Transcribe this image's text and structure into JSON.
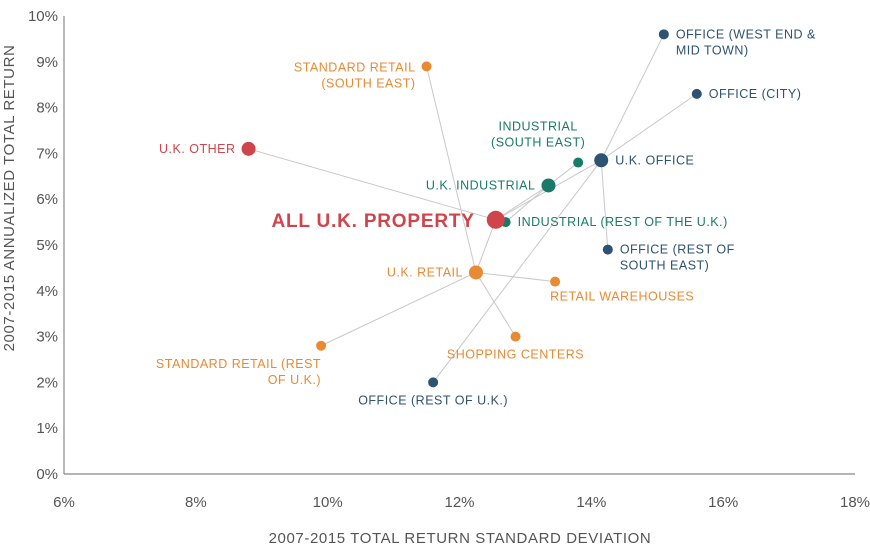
{
  "colors": {
    "office": "#2e5272",
    "industrial": "#1a7a6a",
    "retail": "#e88a32",
    "other": "#d0444c",
    "connector": "#c8c8c8",
    "axis": "#888888"
  },
  "chart_data": {
    "type": "scatter",
    "xlabel": "2007-2015 TOTAL RETURN STANDARD DEVIATION",
    "ylabel": "2007-2015 ANNUALIZED TOTAL RETURN",
    "xlim": [
      6,
      18
    ],
    "ylim": [
      0,
      10
    ],
    "x_unit": "%",
    "y_unit": "%",
    "xticks": [
      6,
      8,
      10,
      12,
      14,
      16,
      18
    ],
    "yticks": [
      0,
      1,
      2,
      3,
      4,
      5,
      6,
      7,
      8,
      9,
      10
    ],
    "xtick_labels": [
      "6%",
      "8%",
      "10%",
      "12%",
      "14%",
      "16%",
      "18%"
    ],
    "ytick_labels": [
      "0%",
      "1%",
      "2%",
      "3%",
      "4%",
      "5%",
      "6%",
      "7%",
      "8%",
      "9%",
      "10%"
    ],
    "grid": false,
    "points": [
      {
        "id": "all-uk-property",
        "label_lines": [
          "ALL U.K. PROPERTY"
        ],
        "x": 12.55,
        "y": 5.55,
        "group": "other",
        "size": "xl",
        "label_pos": "left-big"
      },
      {
        "id": "uk-other",
        "label_lines": [
          "U.K. OTHER"
        ],
        "x": 8.8,
        "y": 7.1,
        "group": "other",
        "size": "lg",
        "label_pos": "left"
      },
      {
        "id": "uk-office",
        "label_lines": [
          "U.K. OFFICE"
        ],
        "x": 14.15,
        "y": 6.85,
        "group": "office",
        "size": "lg",
        "label_pos": "right"
      },
      {
        "id": "office-west-end",
        "label_lines": [
          "OFFICE (WEST END &",
          "MID TOWN)"
        ],
        "x": 15.1,
        "y": 9.6,
        "group": "office",
        "size": "sm",
        "label_pos": "right-top"
      },
      {
        "id": "office-city",
        "label_lines": [
          "OFFICE (CITY)"
        ],
        "x": 15.6,
        "y": 8.3,
        "group": "office",
        "size": "sm",
        "label_pos": "right"
      },
      {
        "id": "office-rest-south-east",
        "label_lines": [
          "OFFICE (REST OF",
          "SOUTH EAST)"
        ],
        "x": 14.25,
        "y": 4.9,
        "group": "office",
        "size": "sm",
        "label_pos": "right-top"
      },
      {
        "id": "office-rest-uk",
        "label_lines": [
          "OFFICE (REST OF U.K.)"
        ],
        "x": 11.6,
        "y": 2.0,
        "group": "office",
        "size": "sm",
        "label_pos": "below"
      },
      {
        "id": "uk-industrial",
        "label_lines": [
          "U.K. INDUSTRIAL"
        ],
        "x": 13.35,
        "y": 6.3,
        "group": "industrial",
        "size": "lg",
        "label_pos": "left"
      },
      {
        "id": "industrial-south-east",
        "label_lines": [
          "INDUSTRIAL",
          "(SOUTH EAST)"
        ],
        "x": 13.8,
        "y": 6.8,
        "group": "industrial",
        "size": "sm",
        "label_pos": "above"
      },
      {
        "id": "industrial-rest-uk",
        "label_lines": [
          "INDUSTRIAL (REST OF THE U.K.)"
        ],
        "x": 12.7,
        "y": 5.5,
        "group": "industrial",
        "size": "sm",
        "label_pos": "right"
      },
      {
        "id": "uk-retail",
        "label_lines": [
          "U.K. RETAIL"
        ],
        "x": 12.25,
        "y": 4.4,
        "group": "retail",
        "size": "lg",
        "label_pos": "left"
      },
      {
        "id": "standard-retail-south-east",
        "label_lines": [
          "STANDARD RETAIL",
          "(SOUTH EAST)"
        ],
        "x": 11.5,
        "y": 8.9,
        "group": "retail",
        "size": "sm",
        "label_pos": "left-top"
      },
      {
        "id": "standard-retail-rest-uk",
        "label_lines": [
          "STANDARD RETAIL (REST",
          "OF U.K.)"
        ],
        "x": 9.9,
        "y": 2.8,
        "group": "retail",
        "size": "sm",
        "label_pos": "below-left"
      },
      {
        "id": "retail-warehouses",
        "label_lines": [
          "RETAIL WAREHOUSES"
        ],
        "x": 13.45,
        "y": 4.2,
        "group": "retail",
        "size": "sm",
        "label_pos": "below-right"
      },
      {
        "id": "shopping-centers",
        "label_lines": [
          "SHOPPING CENTERS"
        ],
        "x": 12.85,
        "y": 3.0,
        "group": "retail",
        "size": "sm",
        "label_pos": "below"
      }
    ],
    "connections": [
      [
        "all-uk-property",
        "uk-other"
      ],
      [
        "all-uk-property",
        "uk-office"
      ],
      [
        "all-uk-property",
        "uk-industrial"
      ],
      [
        "all-uk-property",
        "uk-retail"
      ],
      [
        "uk-office",
        "office-west-end"
      ],
      [
        "uk-office",
        "office-city"
      ],
      [
        "uk-office",
        "office-rest-south-east"
      ],
      [
        "uk-office",
        "office-rest-uk"
      ],
      [
        "uk-industrial",
        "industrial-south-east"
      ],
      [
        "uk-industrial",
        "industrial-rest-uk"
      ],
      [
        "uk-retail",
        "standard-retail-south-east"
      ],
      [
        "uk-retail",
        "standard-retail-rest-uk"
      ],
      [
        "uk-retail",
        "retail-warehouses"
      ],
      [
        "uk-retail",
        "shopping-centers"
      ]
    ]
  }
}
